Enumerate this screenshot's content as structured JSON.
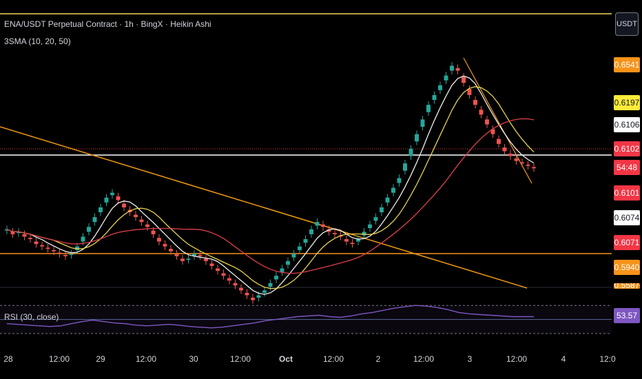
{
  "header": {
    "symbol_title": "ENA/USDT Perpetual Contract · 1h · BingX · Heikin Ashi",
    "indicator_sma": "3SMA (10, 20, 50)",
    "indicator_rsi": "RSI (30, close)",
    "currency_button": "USDT"
  },
  "colors": {
    "up": "#26a69a",
    "down": "#ef5350",
    "sma10": "#f0f0f0",
    "sma20": "#e8d44d",
    "sma50": "#e0404a",
    "trendline": "#f39c12",
    "rsi": "#7e57c2"
  },
  "price_tags": [
    {
      "label": "0.6541",
      "bg": "#f7931a",
      "fg": "dark",
      "note": "horizontal level"
    },
    {
      "label": "0.6197",
      "bg": "#ffeb3b",
      "fg": "light",
      "note": "SMA 20"
    },
    {
      "label": "0.6106",
      "bg": "#ffffff",
      "fg": "light",
      "note": "SMA 10"
    },
    {
      "label": "0.6102",
      "bg": "#f23645",
      "fg": "dark",
      "note": "last price"
    },
    {
      "label": "54:48",
      "bg": "#f23645",
      "fg": "dark",
      "note": "bar countdown"
    },
    {
      "label": "0.6101",
      "bg": "#f23645",
      "fg": "dark",
      "note": "SMA 50"
    },
    {
      "label": "0.6074",
      "bg": "#ffffff",
      "fg": "light",
      "note": "horizontal level"
    },
    {
      "label": "0.6071",
      "bg": "#f23645",
      "fg": "dark",
      "note": ""
    },
    {
      "label": "0.5940",
      "bg": "#f7931a",
      "fg": "dark",
      "note": "horizontal level"
    },
    {
      "label": "0.5587",
      "bg": "#f7931a",
      "fg": "dark",
      "note": "partially hidden"
    }
  ],
  "rsi_tag": {
    "label": "53.57",
    "bg": "#7e57c2"
  },
  "chart_data": [
    {
      "type": "candlestick",
      "title": "ENA/USDT Perpetual Contract · 1h · BingX · Heikin Ashi",
      "x_ticks": [
        "28",
        "12:00",
        "29",
        "12:00",
        "30",
        "12:00",
        "Oct",
        "12:00",
        "2",
        "12:00",
        "3",
        "12:00",
        "4",
        "12:0"
      ],
      "candles_close": [
        0.585,
        0.583,
        0.584,
        0.582,
        0.581,
        0.579,
        0.578,
        0.577,
        0.576,
        0.575,
        0.574,
        0.575,
        0.578,
        0.582,
        0.586,
        0.59,
        0.594,
        0.598,
        0.6,
        0.597,
        0.594,
        0.592,
        0.59,
        0.588,
        0.586,
        0.583,
        0.58,
        0.578,
        0.576,
        0.574,
        0.572,
        0.573,
        0.575,
        0.574,
        0.572,
        0.57,
        0.568,
        0.566,
        0.564,
        0.562,
        0.56,
        0.558,
        0.556,
        0.558,
        0.56,
        0.563,
        0.566,
        0.569,
        0.572,
        0.575,
        0.578,
        0.581,
        0.585,
        0.588,
        0.586,
        0.584,
        0.583,
        0.582,
        0.58,
        0.579,
        0.581,
        0.584,
        0.587,
        0.59,
        0.594,
        0.598,
        0.602,
        0.606,
        0.612,
        0.618,
        0.624,
        0.63,
        0.636,
        0.64,
        0.644,
        0.648,
        0.652,
        0.65,
        0.645,
        0.64,
        0.636,
        0.632,
        0.628,
        0.624,
        0.62,
        0.617,
        0.615,
        0.613,
        0.612,
        0.611,
        0.61
      ],
      "sma_lines": [
        {
          "name": "SMA 10",
          "color": "#f0f0f0",
          "last": 0.6106
        },
        {
          "name": "SMA 20",
          "color": "#e8d44d",
          "last": 0.6197
        },
        {
          "name": "SMA 50",
          "color": "#e0404a",
          "last": 0.6101
        }
      ],
      "horizontal_levels": [
        0.6541,
        0.6074,
        0.594
      ],
      "last_price": 0.6102,
      "y_axis": "right"
    },
    {
      "type": "line",
      "title": "RSI (30, close)",
      "series": [
        {
          "name": "RSI",
          "values": [
            44,
            43,
            42,
            41,
            40,
            41,
            44,
            47,
            49,
            47,
            45,
            44,
            42,
            41,
            42,
            43,
            42,
            40,
            39,
            38,
            39,
            41,
            43,
            45,
            48,
            50,
            52,
            54,
            55,
            56,
            54,
            53,
            55,
            58,
            60,
            63,
            66,
            68,
            70,
            69,
            67,
            64,
            60,
            58,
            57,
            56,
            55,
            54,
            54,
            54
          ]
        }
      ],
      "last_value": 53.57,
      "ylim": [
        30,
        80
      ],
      "reference_lines": [
        70,
        50,
        30
      ]
    }
  ]
}
